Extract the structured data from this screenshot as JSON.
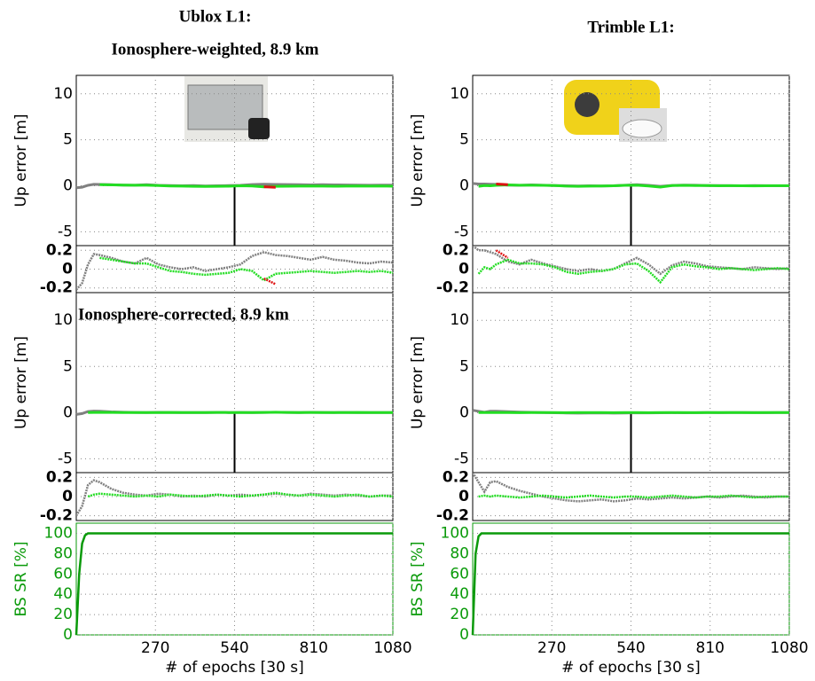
{
  "chart_data": [
    {
      "type": "line",
      "title": "Ublox L1:",
      "subtitle": "Ionosphere-weighted, 8.9 km",
      "ylabel": "Up error [m]",
      "xlim": [
        0,
        1080
      ],
      "ylim": [
        -6.5,
        12
      ],
      "yticks": [
        -5,
        0,
        5,
        10
      ],
      "inset_ylim": [
        -0.25,
        0.25
      ],
      "inset_yticks": [
        0.2,
        0,
        -0.2
      ],
      "grid": true,
      "x": [
        0,
        20,
        40,
        60,
        80,
        120,
        160,
        200,
        240,
        280,
        320,
        360,
        400,
        440,
        480,
        520,
        560,
        600,
        640,
        680,
        720,
        760,
        800,
        840,
        880,
        920,
        960,
        1000,
        1040,
        1080
      ],
      "series": [
        {
          "color": "#808080",
          "values": [
            -0.22,
            -0.15,
            0.05,
            0.16,
            0.15,
            0.12,
            0.08,
            0.06,
            0.12,
            0.05,
            0.02,
            0.0,
            0.02,
            -0.02,
            0.0,
            0.02,
            0.05,
            0.14,
            0.18,
            0.15,
            0.14,
            0.12,
            0.1,
            0.13,
            0.1,
            0.09,
            0.07,
            0.06,
            0.08,
            0.07
          ]
        },
        {
          "color": "#22dd22",
          "values": [
            null,
            null,
            null,
            null,
            0.12,
            0.1,
            0.08,
            0.06,
            0.06,
            0.02,
            -0.02,
            -0.03,
            -0.05,
            -0.06,
            -0.05,
            -0.04,
            0.0,
            -0.02,
            -0.12,
            -0.05,
            -0.04,
            -0.03,
            -0.02,
            -0.03,
            -0.04,
            -0.03,
            -0.02,
            -0.03,
            -0.02,
            -0.04
          ]
        },
        {
          "color": "#dd1111",
          "values": [
            null,
            null,
            null,
            null,
            null,
            null,
            null,
            null,
            null,
            null,
            null,
            null,
            null,
            null,
            null,
            null,
            null,
            null,
            -0.1,
            -0.16,
            null,
            null,
            null,
            null,
            null,
            null,
            null,
            null,
            null,
            null
          ]
        }
      ]
    },
    {
      "type": "line",
      "annotation": "Ionosphere-corrected, 8.9 km",
      "ylabel": "Up error [m]",
      "xlim": [
        0,
        1080
      ],
      "ylim": [
        -6.5,
        13
      ],
      "yticks": [
        -5,
        0,
        5,
        10
      ],
      "inset_ylim": [
        -0.25,
        0.25
      ],
      "inset_yticks": [
        0.2,
        0,
        -0.2
      ],
      "grid": true,
      "x": [
        0,
        20,
        40,
        60,
        80,
        120,
        160,
        200,
        240,
        280,
        320,
        360,
        400,
        440,
        480,
        520,
        560,
        600,
        640,
        680,
        720,
        760,
        800,
        840,
        880,
        920,
        960,
        1000,
        1040,
        1080
      ],
      "series": [
        {
          "color": "#808080",
          "values": [
            -0.2,
            -0.1,
            0.12,
            0.17,
            0.15,
            0.08,
            0.04,
            0.02,
            0.01,
            0.03,
            0.02,
            0.0,
            0.01,
            0.0,
            0.02,
            0.01,
            0.02,
            0.01,
            0.02,
            0.03,
            0.02,
            0.01,
            0.03,
            0.02,
            0.01,
            0.02,
            0.01,
            0.0,
            0.01,
            0.01
          ]
        },
        {
          "color": "#22dd22",
          "values": [
            null,
            null,
            0.0,
            0.02,
            0.03,
            0.02,
            0.01,
            0.0,
            0.01,
            0.0,
            0.02,
            0.01,
            0.0,
            0.01,
            0.02,
            0.01,
            0.0,
            0.01,
            0.02,
            0.04,
            0.02,
            0.01,
            0.02,
            0.01,
            0.0,
            0.01,
            0.02,
            0.0,
            0.01,
            0.0
          ]
        }
      ]
    },
    {
      "type": "line",
      "title": "Trimble L1:",
      "ylabel": "Up error [m]",
      "xlim": [
        0,
        1080
      ],
      "ylim": [
        -6.5,
        12
      ],
      "yticks": [
        -5,
        0,
        5,
        10
      ],
      "inset_ylim": [
        -0.25,
        0.25
      ],
      "inset_yticks": [
        0.2,
        0,
        -0.2
      ],
      "grid": true,
      "x": [
        0,
        20,
        40,
        60,
        80,
        120,
        160,
        200,
        240,
        280,
        320,
        360,
        400,
        440,
        480,
        520,
        560,
        600,
        640,
        680,
        720,
        760,
        800,
        840,
        880,
        920,
        960,
        1000,
        1040,
        1080
      ],
      "series": [
        {
          "color": "#808080",
          "values": [
            0.25,
            0.2,
            0.2,
            0.18,
            0.16,
            0.08,
            0.05,
            0.1,
            0.06,
            0.03,
            0.0,
            -0.02,
            0.0,
            -0.02,
            0.0,
            0.06,
            0.12,
            0.05,
            -0.05,
            0.04,
            0.08,
            0.06,
            0.03,
            0.02,
            0.01,
            0.0,
            0.02,
            0.01,
            0.0,
            0.01
          ]
        },
        {
          "color": "#22dd22",
          "values": [
            null,
            -0.05,
            0.02,
            0.0,
            0.05,
            0.1,
            0.06,
            0.06,
            0.05,
            0.02,
            -0.03,
            -0.05,
            -0.03,
            -0.02,
            0.0,
            0.05,
            0.06,
            -0.02,
            -0.14,
            0.02,
            0.05,
            0.03,
            0.02,
            0.0,
            0.01,
            0.0,
            -0.01,
            0.0,
            0.01,
            0.0
          ]
        },
        {
          "color": "#dd1111",
          "values": [
            null,
            null,
            null,
            null,
            0.2,
            0.12,
            null,
            null,
            null,
            null,
            null,
            null,
            null,
            null,
            null,
            null,
            null,
            null,
            null,
            null,
            null,
            null,
            null,
            null,
            null,
            null,
            null,
            null,
            null,
            null
          ]
        }
      ]
    },
    {
      "type": "line",
      "ylabel": "Up error [m]",
      "xlim": [
        0,
        1080
      ],
      "ylim": [
        -6.5,
        13
      ],
      "yticks": [
        -5,
        0,
        5,
        10
      ],
      "inset_ylim": [
        -0.25,
        0.25
      ],
      "inset_yticks": [
        0.2,
        0,
        -0.2
      ],
      "grid": true,
      "x": [
        0,
        20,
        40,
        60,
        80,
        120,
        160,
        200,
        240,
        280,
        320,
        360,
        400,
        440,
        480,
        520,
        560,
        600,
        640,
        680,
        720,
        760,
        800,
        840,
        880,
        920,
        960,
        1000,
        1040,
        1080
      ],
      "series": [
        {
          "color": "#808080",
          "values": [
            0.25,
            0.15,
            0.05,
            0.15,
            0.16,
            0.1,
            0.06,
            0.03,
            0.0,
            -0.02,
            -0.04,
            -0.05,
            -0.04,
            -0.03,
            -0.05,
            -0.04,
            -0.02,
            -0.03,
            -0.02,
            -0.01,
            -0.02,
            -0.01,
            0.0,
            -0.01,
            0.0,
            0.01,
            0.0,
            -0.01,
            0.0,
            0.0
          ]
        },
        {
          "color": "#22dd22",
          "values": [
            null,
            0.0,
            0.01,
            0.0,
            0.01,
            0.0,
            -0.01,
            0.0,
            0.01,
            0.0,
            -0.01,
            0.0,
            0.01,
            0.0,
            -0.01,
            0.0,
            0.0,
            -0.01,
            0.0,
            0.01,
            0.0,
            -0.01,
            0.0,
            0.0,
            0.01,
            0.0,
            -0.01,
            0.0,
            0.0,
            0.0
          ]
        }
      ]
    },
    {
      "type": "line",
      "ylabel": "BS SR [%]",
      "xlabel": "# of epochs [30 s]",
      "xlim": [
        0,
        1080
      ],
      "xticks": [
        270,
        540,
        810,
        1080
      ],
      "ylim": [
        0,
        110
      ],
      "yticks": [
        0,
        20,
        40,
        60,
        80,
        100
      ],
      "grid": true,
      "color": "#0a9a0a",
      "x": [
        0,
        10,
        20,
        30,
        40,
        60,
        1080
      ],
      "values": [
        0,
        60,
        90,
        98,
        100,
        100,
        100
      ]
    },
    {
      "type": "line",
      "ylabel": "BS SR [%]",
      "xlabel": "# of epochs [30 s]",
      "xlim": [
        0,
        1080
      ],
      "xticks": [
        270,
        540,
        810,
        1080
      ],
      "ylim": [
        0,
        110
      ],
      "yticks": [
        0,
        20,
        40,
        60,
        80,
        100
      ],
      "grid": true,
      "color": "#0a9a0a",
      "x": [
        0,
        10,
        20,
        30,
        40,
        60,
        1080
      ],
      "values": [
        0,
        80,
        97,
        100,
        100,
        100,
        100
      ]
    }
  ]
}
